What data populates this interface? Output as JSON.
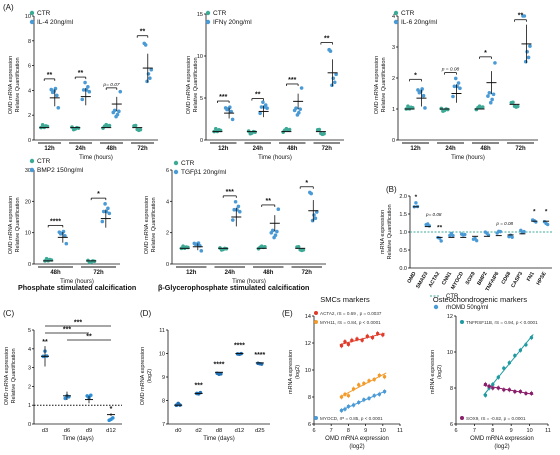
{
  "figure": {
    "panel_labels": {
      "A": "(A)",
      "B": "(B)",
      "C": "(C)",
      "D": "(D)",
      "E": "(E)"
    },
    "titles": {
      "phosphate": "Phosphate stimulated calcification",
      "glycero": "β-Glycerophosphate stimulated calcification",
      "smc": "SMCs markers",
      "osteo": "Osteochondrogenic markers"
    },
    "ylabels": {
      "rel": [
        "OMD mRNA expression",
        "Relative Quantification"
      ],
      "b": [
        "mRNA expression",
        "Relative Quantification"
      ],
      "c": [
        "OMD mRNA expression",
        "Relative Quantification"
      ],
      "d": [
        "OMD mRNA expression",
        "(log2)"
      ],
      "e": [
        "mRNA expression",
        "(log2)"
      ]
    },
    "xlabels": {
      "time_hours": "Time (hours)",
      "time_days": "Time (days)",
      "omd_log2": [
        "OMD mRNA expression",
        "(log2)"
      ]
    },
    "colors": {
      "ctr": "#3daa97",
      "treat": "#4a9ad6",
      "c_mean": "#2f8fd6",
      "d": "#1f6fb4",
      "orange": "#f39a2a",
      "red": "#e03b2a",
      "purple": "#8a1e6a",
      "teal": "#1e9aa0"
    }
  },
  "chart_data": [
    {
      "id": "A1",
      "type": "scatter",
      "legend": [
        "CTR",
        "IL-4 20ng/ml"
      ],
      "categories": [
        "12h",
        "24h",
        "48h",
        "72h"
      ],
      "ctr_means": [
        1,
        1,
        1,
        1
      ],
      "treat_means": [
        3.4,
        3.5,
        2.9,
        5.8
      ],
      "significance": [
        "**",
        "**",
        "p= 0.07",
        "**"
      ],
      "ylim": [
        0,
        10
      ],
      "yticks": [
        0,
        2,
        4,
        6,
        8,
        10
      ]
    },
    {
      "id": "A2",
      "type": "scatter",
      "legend": [
        "CTR",
        "IFNγ 20ng/ml"
      ],
      "categories": [
        "12h",
        "24h",
        "48h",
        "72h"
      ],
      "ctr_means": [
        1,
        1,
        1,
        1
      ],
      "treat_means": [
        3.2,
        3.4,
        4.6,
        8.0
      ],
      "significance": [
        "***",
        "**",
        "***",
        "**"
      ],
      "ylim": [
        0,
        15
      ],
      "yticks": [
        0,
        5,
        10,
        15
      ]
    },
    {
      "id": "A3",
      "type": "scatter",
      "legend": [
        "CTR",
        "IL-6 20ng/ml"
      ],
      "categories": [
        "12h",
        "24h",
        "48h",
        "72h"
      ],
      "ctr_means": [
        1,
        1,
        1,
        1.15
      ],
      "treat_means": [
        1.35,
        1.5,
        1.85,
        3.1
      ],
      "significance": [
        "*",
        "p = 0.08",
        "*",
        "**"
      ],
      "ylim": [
        0,
        4
      ],
      "yticks": [
        0,
        1,
        2,
        3,
        4
      ]
    },
    {
      "id": "A4",
      "type": "scatter",
      "legend": [
        "CTR",
        "BMP2 150ng/ml"
      ],
      "categories": [
        "48h",
        "72h"
      ],
      "ctr_means": [
        1,
        1
      ],
      "treat_means": [
        8.5,
        14.5
      ],
      "significance": [
        "****",
        "*"
      ],
      "ylim": [
        0,
        30
      ],
      "yticks": [
        0,
        10,
        20,
        30
      ]
    },
    {
      "id": "A5",
      "type": "scatter",
      "legend": [
        "CTR",
        "TGFβ1 20ng/ml"
      ],
      "categories": [
        "12h",
        "24h",
        "48h",
        "72h"
      ],
      "ctr_means": [
        1,
        1,
        1,
        1
      ],
      "treat_means": [
        1.1,
        3.0,
        2.6,
        3.4
      ],
      "significance": [
        "",
        "***",
        "**",
        "*"
      ],
      "ylim": [
        0,
        6
      ],
      "yticks": [
        0,
        2,
        4,
        6
      ]
    },
    {
      "id": "B",
      "type": "scatter",
      "legend": [
        "CTR",
        "rhOMD 50ng/ml"
      ],
      "categories": [
        "OMD",
        "SMAD3",
        "ACTA2",
        "CNN1",
        "MYOCD",
        "SOX9",
        "BMP2",
        "TNFAIP6",
        "CD68",
        "CASP3",
        "FN1",
        "HPSE"
      ],
      "values": [
        1.7,
        1.15,
        0.85,
        0.85,
        0.85,
        0.88,
        0.88,
        0.9,
        0.92,
        0.95,
        1.3,
        1.3
      ],
      "significance": [
        "*",
        "p= 0.08",
        "**",
        "",
        "",
        "",
        "",
        "p = 0.08",
        "",
        "",
        "*",
        "*"
      ],
      "ylim": [
        0,
        2.0
      ],
      "yticks": [
        0.0,
        0.5,
        1.0,
        1.5,
        2.0
      ]
    },
    {
      "id": "C",
      "type": "scatter",
      "categories": [
        "d3",
        "d6",
        "d9",
        "d12"
      ],
      "values": [
        3.6,
        1.5,
        1.3,
        0.5
      ],
      "significance": [
        "**",
        "",
        "",
        "*"
      ],
      "brackets": [
        "***",
        "***",
        "**"
      ],
      "ylim": [
        0,
        5
      ],
      "yticks": [
        0,
        1,
        2,
        3,
        4,
        5
      ]
    },
    {
      "id": "D",
      "type": "scatter",
      "categories": [
        "d0",
        "d2",
        "d8",
        "d12",
        "d25"
      ],
      "values": [
        7.8,
        8.3,
        9.2,
        10.0,
        9.6
      ],
      "significance": [
        "",
        "***",
        "****",
        "****",
        "****"
      ],
      "ylim": [
        7,
        11
      ],
      "yticks": [
        7,
        8,
        9,
        10,
        11
      ]
    },
    {
      "id": "E1",
      "type": "scatter",
      "xlim": [
        6,
        11
      ],
      "ylim": [
        6,
        14
      ],
      "xticks": [
        6,
        7,
        8,
        9,
        10,
        11
      ],
      "yticks": [
        6,
        8,
        10,
        12,
        14
      ],
      "series": [
        {
          "name": "ACTA2, rS = 0.69 , p = 0.0037",
          "color": "#e03b2a",
          "x": [
            7.6,
            7.8,
            8.0,
            8.2,
            8.5,
            8.8,
            9.1,
            9.4,
            9.7,
            10.0
          ],
          "y": [
            11.8,
            12.1,
            11.9,
            12.2,
            12.3,
            12.2,
            12.5,
            12.4,
            12.7,
            12.6
          ]
        },
        {
          "name": "MYH11, rS = 0.84, p < 0.0001",
          "color": "#f39a2a",
          "x": [
            7.6,
            7.8,
            8.0,
            8.3,
            8.6,
            8.9,
            9.2,
            9.5,
            9.8,
            10.1
          ],
          "y": [
            8.0,
            8.2,
            8.1,
            8.6,
            8.9,
            9.0,
            9.2,
            9.3,
            9.6,
            9.5
          ]
        },
        {
          "name": "MYOCD, rP = 0.85, p < 0.0001",
          "color": "#4a9ad6",
          "x": [
            7.6,
            7.8,
            8.0,
            8.3,
            8.6,
            8.9,
            9.2,
            9.5,
            9.8,
            10.1
          ],
          "y": [
            7.0,
            7.1,
            7.3,
            7.4,
            7.6,
            7.8,
            7.9,
            8.1,
            8.2,
            8.4
          ]
        }
      ]
    },
    {
      "id": "E2",
      "type": "scatter",
      "xlim": [
        6,
        11
      ],
      "ylim": [
        6,
        12
      ],
      "xticks": [
        6,
        7,
        8,
        9,
        10,
        11
      ],
      "yticks": [
        6,
        8,
        10,
        12
      ],
      "series": [
        {
          "name": "TNFRSF11B, rS = 0.94, p < 0.0001",
          "color": "#1e9aa0",
          "x": [
            7.6,
            7.8,
            8.0,
            8.3,
            8.6,
            8.9,
            9.2,
            9.5,
            9.8,
            10.1
          ],
          "y": [
            7.6,
            8.0,
            8.2,
            8.6,
            9.1,
            9.4,
            9.8,
            10.1,
            10.4,
            10.8
          ]
        },
        {
          "name": "SOX9, rS = -0.82, p = 0.0001",
          "color": "#8a1e6a",
          "x": [
            7.6,
            7.8,
            8.0,
            8.3,
            8.6,
            8.9,
            9.2,
            9.5,
            9.8,
            10.1
          ],
          "y": [
            8.2,
            8.1,
            8.0,
            8.0,
            7.9,
            7.9,
            7.8,
            7.8,
            7.7,
            7.7
          ]
        }
      ]
    }
  ]
}
